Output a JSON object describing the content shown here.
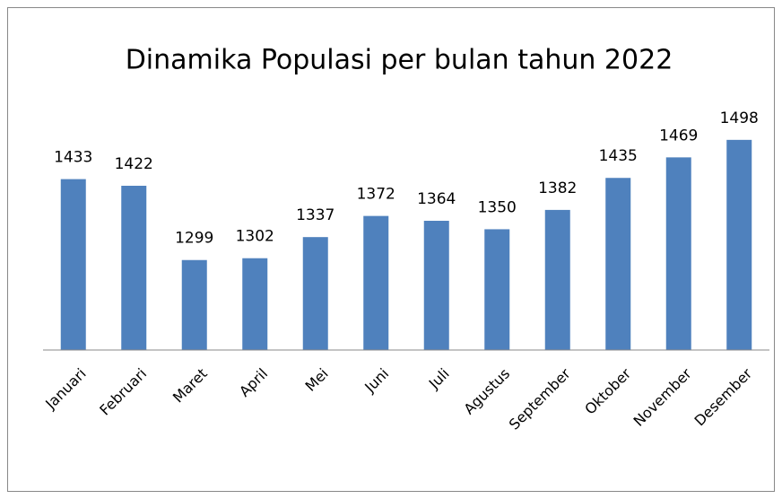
{
  "chart_data": {
    "type": "bar",
    "title": "Dinamika Populasi per bulan tahun 2022",
    "categories": [
      "Januari",
      "Februari",
      "Maret",
      "April",
      "Mei",
      "Juni",
      "Juli",
      "Agustus",
      "September",
      "Oktober",
      "November",
      "Desember"
    ],
    "values": [
      1433,
      1422,
      1299,
      1302,
      1337,
      1372,
      1364,
      1350,
      1382,
      1435,
      1469,
      1498
    ],
    "color": "#4f81bd",
    "ylim": [
      1150,
      1500
    ]
  }
}
